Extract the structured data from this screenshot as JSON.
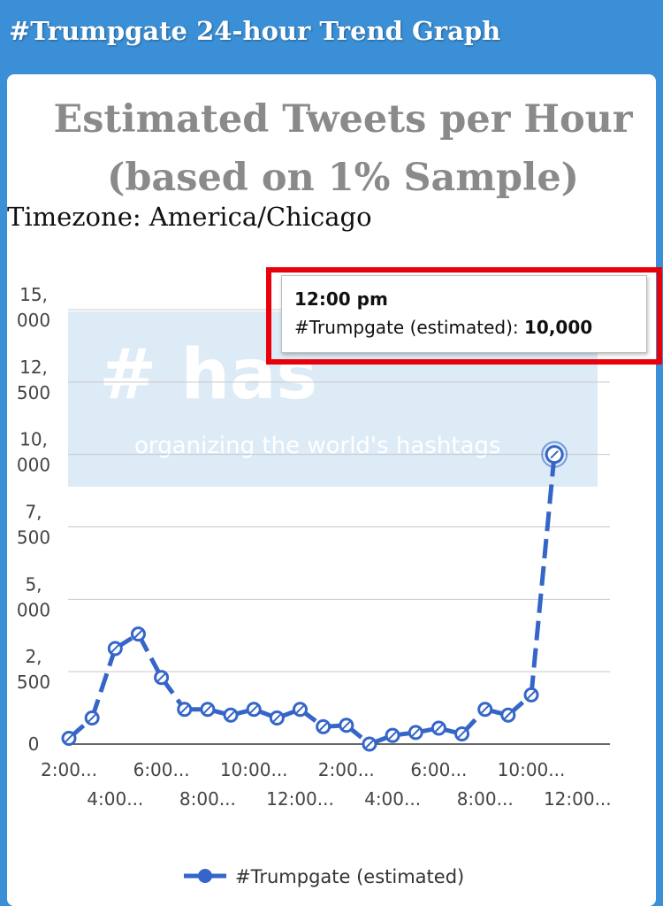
{
  "header": {
    "title": "#Trumpgate 24-hour Trend Graph"
  },
  "chart_title_line1": "Estimated Tweets per Hour",
  "chart_title_line2": "(based on 1% Sample)",
  "timezone": "Timezone: America/Chicago",
  "watermark": {
    "main": "# has",
    "tagline": "organizing the world's hashtags"
  },
  "tooltip": {
    "time": "12:00 pm",
    "series": "#Trumpgate (estimated):",
    "value": "10,000"
  },
  "colors": {
    "header": "#3a8fd6",
    "line": "#3565c8",
    "highlight": "#e8000b"
  },
  "chart_data": {
    "type": "line",
    "ylim": [
      0,
      15000
    ],
    "yticks": [
      {
        "value": 0,
        "label": [
          "0"
        ]
      },
      {
        "value": 2500,
        "label": [
          "2,",
          "500"
        ]
      },
      {
        "value": 5000,
        "label": [
          "5,",
          "000"
        ]
      },
      {
        "value": 7500,
        "label": [
          "7,",
          "500"
        ]
      },
      {
        "value": 10000,
        "label": [
          "10,",
          "000"
        ]
      },
      {
        "value": 12500,
        "label": [
          "12,",
          "500"
        ]
      },
      {
        "value": 15000,
        "label": [
          "15,",
          "000"
        ]
      }
    ],
    "xtick_labels": [
      {
        "index": 0,
        "row": 1,
        "label": "2:00..."
      },
      {
        "index": 2,
        "row": 2,
        "label": "4:00..."
      },
      {
        "index": 4,
        "row": 1,
        "label": "6:00..."
      },
      {
        "index": 6,
        "row": 2,
        "label": "8:00..."
      },
      {
        "index": 8,
        "row": 1,
        "label": "10:00..."
      },
      {
        "index": 10,
        "row": 2,
        "label": "12:00..."
      },
      {
        "index": 12,
        "row": 1,
        "label": "2:00..."
      },
      {
        "index": 14,
        "row": 2,
        "label": "4:00..."
      },
      {
        "index": 16,
        "row": 1,
        "label": "6:00..."
      },
      {
        "index": 18,
        "row": 2,
        "label": "8:00..."
      },
      {
        "index": 20,
        "row": 1,
        "label": "10:00..."
      },
      {
        "index": 22,
        "row": 2,
        "label": "12:00..."
      }
    ],
    "series": [
      {
        "name": "#Trumpgate (estimated)",
        "values": [
          200,
          900,
          3300,
          3800,
          2300,
          1200,
          1200,
          1000,
          1200,
          900,
          1200,
          600,
          650,
          0,
          300,
          400,
          550,
          350,
          1200,
          1000,
          1700,
          10000
        ]
      }
    ],
    "legend": "bottom",
    "grid": true
  }
}
